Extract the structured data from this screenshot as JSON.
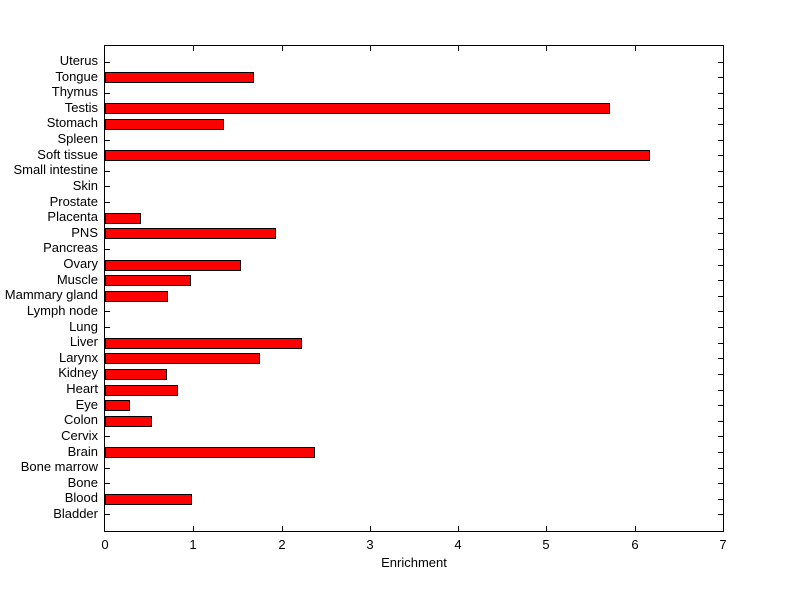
{
  "chart_data": {
    "type": "bar",
    "orientation": "horizontal",
    "title": "",
    "xlabel": "Enrichment",
    "ylabel": "",
    "categories": [
      "Uterus",
      "Tongue",
      "Thymus",
      "Testis",
      "Stomach",
      "Spleen",
      "Soft tissue",
      "Small intestine",
      "Skin",
      "Prostate",
      "Placenta",
      "PNS",
      "Pancreas",
      "Ovary",
      "Muscle",
      "Mammary gland",
      "Lymph node",
      "Lung",
      "Liver",
      "Larynx",
      "Kidney",
      "Heart",
      "Eye",
      "Colon",
      "Cervix",
      "Brain",
      "Bone marrow",
      "Bone",
      "Blood",
      "Bladder"
    ],
    "values": [
      0,
      1.69,
      0,
      5.72,
      1.35,
      0,
      6.17,
      0,
      0,
      0,
      0.41,
      1.94,
      0,
      1.54,
      0.97,
      0.71,
      0,
      0,
      2.23,
      1.76,
      0.7,
      0.83,
      0.28,
      0.53,
      0,
      2.38,
      0,
      0,
      0.98,
      0
    ],
    "xlim": [
      0,
      7
    ],
    "xticks": [
      0,
      1,
      2,
      3,
      4,
      5,
      6,
      7
    ],
    "grid": false,
    "legend": null,
    "bar_color": "#ff0000",
    "bar_edge_color": "#000000",
    "axis_color": "#000000",
    "background_color": "#ffffff"
  }
}
